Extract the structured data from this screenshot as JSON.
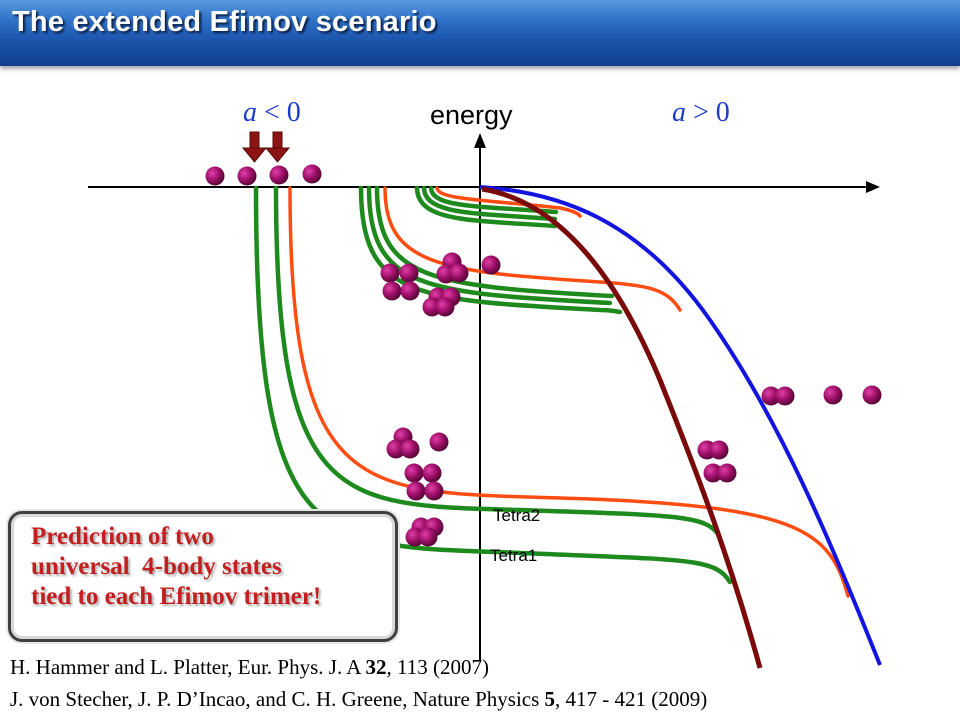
{
  "title": "The extended Efimov scenario",
  "axis": {
    "y_label": "energy",
    "left_region": {
      "var": "a",
      "rel": "< 0"
    },
    "right_region": {
      "var": "a",
      "rel": "> 0"
    }
  },
  "curve_labels": {
    "tetra2": "Tetra2",
    "tetra1": "Tetra1"
  },
  "colors": {
    "title_bar": "#1d56ae",
    "green_curves": "#1e8a1e",
    "orange_curves": "#ff4d12",
    "blue_curve": "#1414e0",
    "darkred_curve": "#7a0a0a",
    "particles": "#a0106a",
    "arrows": "#8b1414",
    "callout_text": "#c22020"
  },
  "callout": {
    "lines": [
      "Prediction of two",
      "universal  4-body states",
      "tied to each Efimov trimer!"
    ]
  },
  "references": [
    {
      "pre": "H. Hammer and L. Platter, Eur. Phys. J. A ",
      "vol": "32",
      "post": ", 113 (2007)"
    },
    {
      "pre": "J. von Stecher, J. P. D’Incao, and C. H. Greene, Nature Physics ",
      "vol": "5",
      "post": ", 417 - 421 (2009)"
    }
  ]
}
